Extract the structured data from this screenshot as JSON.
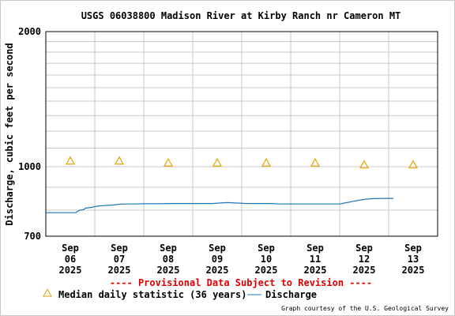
{
  "colors": {
    "discharge": "#1f77b4",
    "median": "#e6a400",
    "provisional": "#e00000",
    "grid": "#c8c8c8"
  },
  "provisional_text": "---- Provisional Data Subject to Revision ----",
  "credit": "Graph courtesy of the U.S. Geological Survey",
  "chart_data": {
    "type": "line",
    "title": "USGS 06038800 Madison River at Kirby Ranch nr Cameron MT",
    "ylabel": "Discharge, cubic feet per second",
    "xlabel": "",
    "yscale": "log",
    "ylim": [
      700,
      2000
    ],
    "yticks": [
      700,
      1000,
      2000
    ],
    "xlim": [
      5.5,
      13.5
    ],
    "x_ticks": [
      {
        "x": 6,
        "lines": [
          "Sep",
          "06",
          "2025"
        ]
      },
      {
        "x": 7,
        "lines": [
          "Sep",
          "07",
          "2025"
        ]
      },
      {
        "x": 8,
        "lines": [
          "Sep",
          "08",
          "2025"
        ]
      },
      {
        "x": 9,
        "lines": [
          "Sep",
          "09",
          "2025"
        ]
      },
      {
        "x": 10,
        "lines": [
          "Sep",
          "10",
          "2025"
        ]
      },
      {
        "x": 11,
        "lines": [
          "Sep",
          "11",
          "2025"
        ]
      },
      {
        "x": 12,
        "lines": [
          "Sep",
          "12",
          "2025"
        ]
      },
      {
        "x": 13,
        "lines": [
          "Sep",
          "13",
          "2025"
        ]
      }
    ],
    "grid": true,
    "legend_position": "bottom",
    "series": [
      {
        "name": "Discharge",
        "kind": "line",
        "x": [
          5.5,
          6.12,
          6.14,
          6.2,
          6.28,
          6.3,
          6.45,
          6.5,
          6.6,
          6.75,
          6.9,
          7.0,
          7.15,
          7.3,
          7.5,
          7.7,
          7.85,
          8.0,
          8.3,
          8.6,
          8.9,
          9.05,
          9.2,
          9.4,
          9.6,
          9.9,
          10.1,
          10.3,
          10.5,
          10.7,
          10.9,
          11.2,
          11.35,
          11.5,
          11.6,
          11.75,
          11.9,
          12.05,
          12.2,
          12.4,
          12.6
        ],
        "y": [
          790,
          790,
          795,
          800,
          803,
          808,
          812,
          815,
          818,
          820,
          822,
          825,
          826,
          826,
          827,
          827,
          827,
          828,
          828,
          828,
          828,
          830,
          832,
          830,
          828,
          828,
          828,
          826,
          826,
          826,
          826,
          826,
          826,
          826,
          830,
          836,
          842,
          847,
          849,
          850,
          850
        ]
      },
      {
        "name": "Median daily statistic (36 years)",
        "kind": "marker",
        "x": [
          6,
          7,
          8,
          9,
          10,
          11,
          12,
          13
        ],
        "y": [
          1030,
          1030,
          1020,
          1020,
          1020,
          1020,
          1010,
          1010
        ]
      }
    ]
  }
}
